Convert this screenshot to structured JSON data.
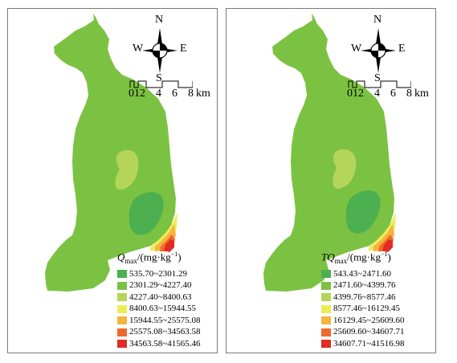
{
  "compass": {
    "n": "N",
    "s": "S",
    "w": "W",
    "e": "E"
  },
  "scale": {
    "ticks": [
      "0",
      "1",
      "2",
      "4",
      "6",
      "8"
    ],
    "unit": "km"
  },
  "panels": [
    {
      "title_main": "Q",
      "title_sub": "max",
      "title_unit": "/(mg·kg",
      "title_sup": "−1",
      "title_close": ")",
      "legend": [
        {
          "range": "535.70~2301.29",
          "color": "#4caf50"
        },
        {
          "range": "2301.29~4227.40",
          "color": "#7cc242"
        },
        {
          "range": "4227.40~8400.63",
          "color": "#b5d55a"
        },
        {
          "range": "8400.63~15944.55",
          "color": "#eded55"
        },
        {
          "range": "15944.55~25575.08",
          "color": "#f7b340"
        },
        {
          "range": "25575.08~34563.58",
          "color": "#ef6a2a"
        },
        {
          "range": "34563.58~41565.46",
          "color": "#e02a23"
        }
      ]
    },
    {
      "title_main": "TQ",
      "title_sub": "max",
      "title_unit": "/(mg·kg",
      "title_sup": "−1",
      "title_close": ")",
      "legend": [
        {
          "range": "543.43~2471.60",
          "color": "#4caf50"
        },
        {
          "range": "2471.60~4399.76",
          "color": "#7cc242"
        },
        {
          "range": "4399.76~8577.46",
          "color": "#b5d55a"
        },
        {
          "range": "8577.46~16129.45",
          "color": "#eded55"
        },
        {
          "range": "16129.45~25609.60",
          "color": "#f7b340"
        },
        {
          "range": "25609.60~34607.71",
          "color": "#ef6a2a"
        },
        {
          "range": "34607.71~41516.98",
          "color": "#e02a23"
        }
      ]
    }
  ]
}
